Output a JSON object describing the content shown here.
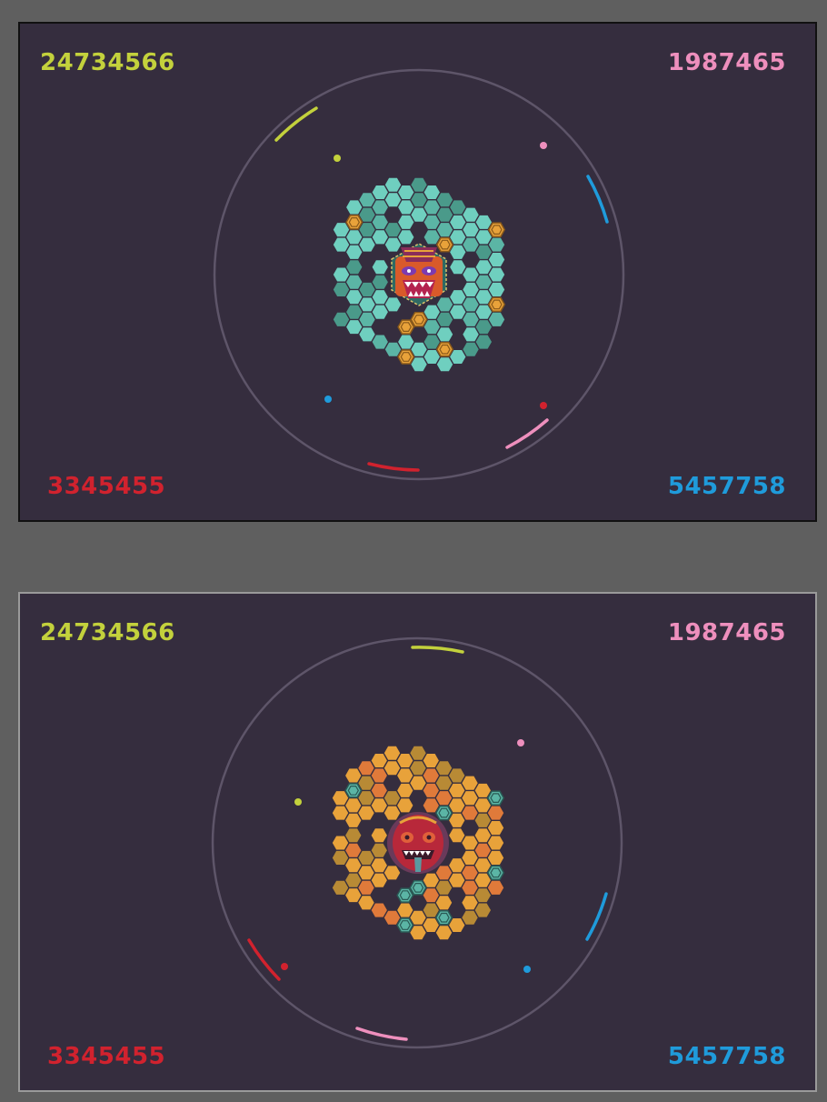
{
  "panels": [
    {
      "scores": {
        "top_left": "24734566",
        "top_right": "1987465",
        "bottom_left": "3345455",
        "bottom_right": "5457758"
      },
      "board_theme": "teal",
      "center_icon": "tiki-mask-icon"
    },
    {
      "scores": {
        "top_left": "24734566",
        "top_right": "1987465",
        "bottom_left": "3345455",
        "bottom_right": "5457758"
      },
      "board_theme": "orange",
      "center_icon": "tribal-mask-icon"
    }
  ],
  "colors": {
    "background": "#352d3e",
    "ring": "#5e5569",
    "player_green": "#c3d13c",
    "player_pink": "#ee8fbd",
    "player_red": "#d1222e",
    "player_blue": "#1f9bdb"
  }
}
